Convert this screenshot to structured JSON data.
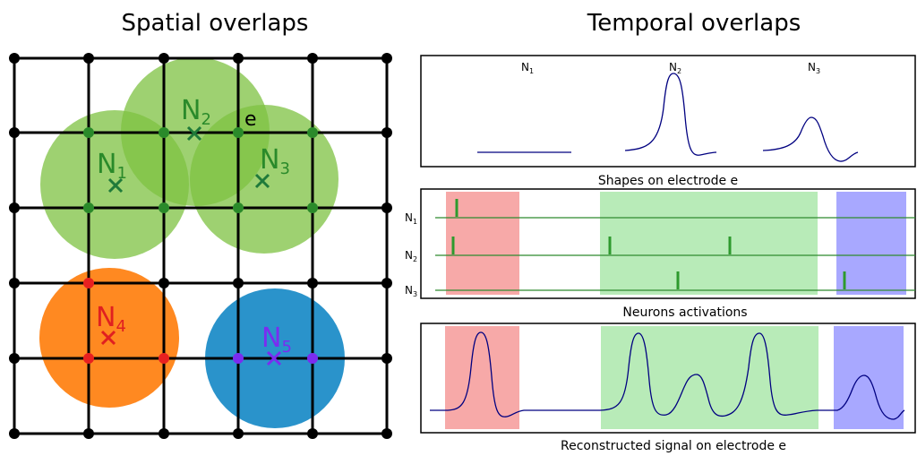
{
  "titles": {
    "spatial": "Spatial overlaps",
    "temporal": "Temporal overlaps"
  },
  "electrode_label": "e",
  "neurons": [
    {
      "id": "N1",
      "main": "N",
      "sub": "1",
      "color": "#7dc242",
      "marker_color": "#2e8b57"
    },
    {
      "id": "N2",
      "main": "N",
      "sub": "2",
      "color": "#7dc242",
      "marker_color": "#2e8b57"
    },
    {
      "id": "N3",
      "main": "N",
      "sub": "3",
      "color": "#7dc242",
      "marker_color": "#2e8b57"
    },
    {
      "id": "N4",
      "main": "N",
      "sub": "4",
      "color": "#ff7f0e",
      "marker_color": "#e02020"
    },
    {
      "id": "N5",
      "main": "N",
      "sub": "5",
      "color": "#1f8dc8",
      "marker_color": "#7b2cf0"
    }
  ],
  "panels": {
    "shapes": {
      "caption": "Shapes on electrode e",
      "labels": [
        {
          "main": "N",
          "sub": "1"
        },
        {
          "main": "N",
          "sub": "2"
        },
        {
          "main": "N",
          "sub": "3"
        }
      ]
    },
    "activations": {
      "caption": "Neurons activations",
      "rows": [
        {
          "main": "N",
          "sub": "1"
        },
        {
          "main": "N",
          "sub": "2"
        },
        {
          "main": "N",
          "sub": "3"
        }
      ]
    },
    "reconstructed": {
      "caption": "Reconstructed signal on electrode e"
    }
  },
  "colors": {
    "red_band": "#f7a9a8",
    "green_band": "#b8ebb8",
    "blue_band": "#a8a8ff",
    "trace": "#000080",
    "spike_line": "#2e8b2e"
  }
}
